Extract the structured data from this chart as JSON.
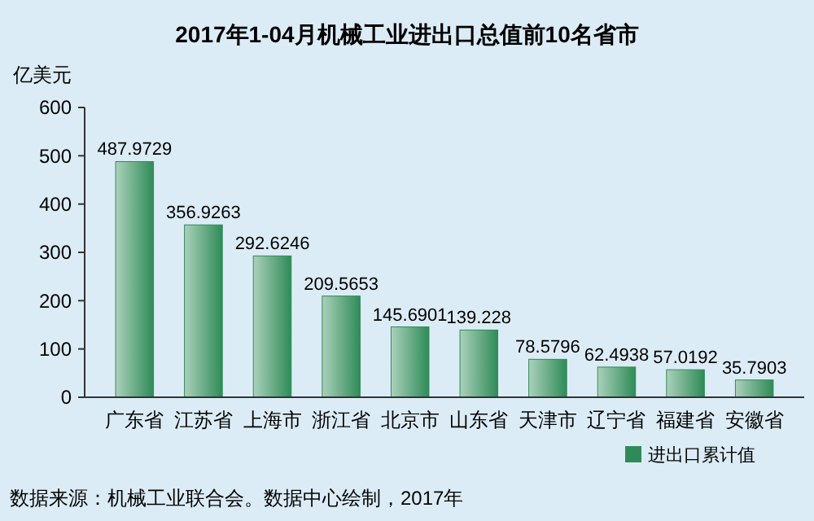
{
  "chart_data": {
    "type": "bar",
    "title": "2017年1-04月机械工业进出口总值前10名省市",
    "ylabel": "亿美元",
    "categories": [
      "广东省",
      "江苏省",
      "上海市",
      "浙江省",
      "北京市",
      "山东省",
      "天津市",
      "辽宁省",
      "福建省",
      "安徽省"
    ],
    "series": [
      {
        "name": "进出口累计值",
        "color": "#2e8b57",
        "values": [
          487.9729,
          356.9263,
          292.6246,
          209.5653,
          145.6901,
          139.228,
          78.5796,
          62.4938,
          57.0192,
          35.7903
        ]
      }
    ],
    "ylim": [
      0,
      600
    ],
    "yticks": [
      0,
      100,
      200,
      300,
      400,
      500,
      600
    ],
    "data_labels": true,
    "legend": "bottom right",
    "grid": false,
    "annotations": [
      "数据来源：机械工业联合会。数据中心绘制，2017年"
    ]
  }
}
